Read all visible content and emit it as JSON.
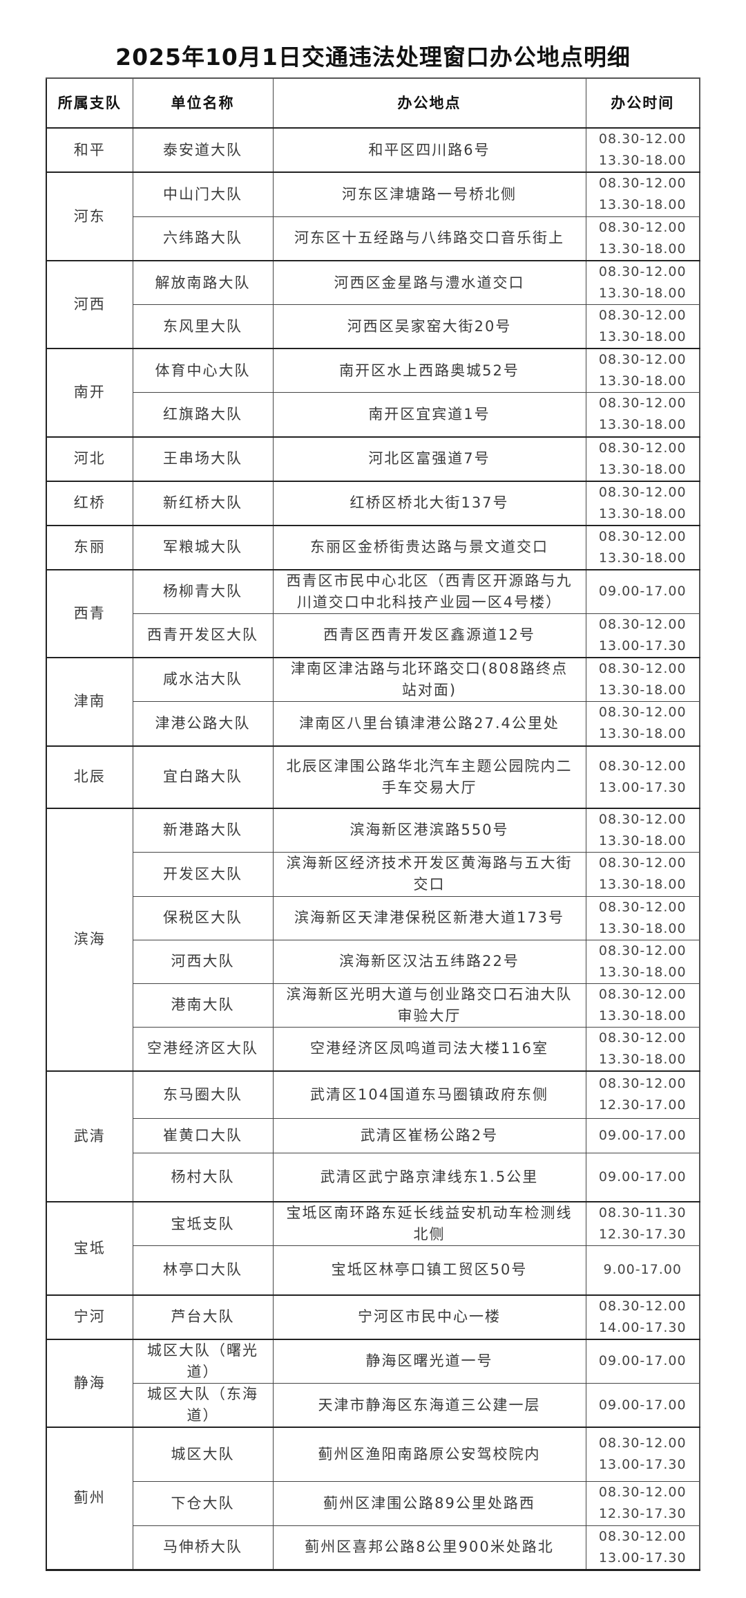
{
  "title": "2025年10月1日交通违法处理窗口办公地点明细",
  "headers": [
    "所属支队",
    "单位名称",
    "办公地点",
    "办公时间"
  ],
  "branches": [
    {
      "name": "和平",
      "units": [
        {
          "unit": "泰安道大队",
          "address": "和平区四川路6号",
          "hours": [
            "08.30-12.00",
            "13.30-18.00"
          ]
        }
      ]
    },
    {
      "name": "河东",
      "units": [
        {
          "unit": "中山门大队",
          "address": "河东区津塘路一号桥北侧",
          "hours": [
            "08.30-12.00",
            "13.30-18.00"
          ]
        },
        {
          "unit": "六纬路大队",
          "address": "河东区十五经路与八纬路交口音乐街上",
          "hours": [
            "08.30-12.00",
            "13.30-18.00"
          ]
        }
      ]
    },
    {
      "name": "河西",
      "units": [
        {
          "unit": "解放南路大队",
          "address": "河西区金星路与澧水道交口",
          "hours": [
            "08.30-12.00",
            "13.30-18.00"
          ]
        },
        {
          "unit": "东风里大队",
          "address": "河西区吴家窑大街20号",
          "hours": [
            "08.30-12.00",
            "13.30-18.00"
          ]
        }
      ]
    },
    {
      "name": "南开",
      "units": [
        {
          "unit": "体育中心大队",
          "address": "南开区水上西路奥城52号",
          "hours": [
            "08.30-12.00",
            "13.30-18.00"
          ]
        },
        {
          "unit": "红旗路大队",
          "address": "南开区宜宾道1号",
          "hours": [
            "08.30-12.00",
            "13.30-18.00"
          ]
        }
      ]
    },
    {
      "name": "河北",
      "units": [
        {
          "unit": "王串场大队",
          "address": "河北区富强道7号",
          "hours": [
            "08.30-12.00",
            "13.30-18.00"
          ]
        }
      ]
    },
    {
      "name": "红桥",
      "units": [
        {
          "unit": "新红桥大队",
          "address": "红桥区桥北大街137号",
          "hours": [
            "08.30-12.00",
            "13.30-18.00"
          ]
        }
      ]
    },
    {
      "name": "东丽",
      "units": [
        {
          "unit": "军粮城大队",
          "address": "东丽区金桥街贵达路与景文道交口",
          "hours": [
            "08.30-12.00",
            "13.30-18.00"
          ]
        }
      ]
    },
    {
      "name": "西青",
      "units": [
        {
          "unit": "杨柳青大队",
          "address": "西青区市民中心北区（西青区开源路与九川道交口中北科技产业园一区4号楼）",
          "hours": [
            "09.00-17.00"
          ]
        },
        {
          "unit": "西青开发区大队",
          "address": "西青区西青开发区鑫源道12号",
          "hours": [
            "08.30-12.00",
            "13.00-17.30"
          ]
        }
      ]
    },
    {
      "name": "津南",
      "units": [
        {
          "unit": "咸水沽大队",
          "address": "津南区津沽路与北环路交口(808路终点站对面)",
          "hours": [
            "08.30-12.00",
            "13.30-18.00"
          ]
        },
        {
          "unit": "津港公路大队",
          "address": "津南区八里台镇津港公路27.4公里处",
          "hours": [
            "08.30-12.00",
            "13.30-18.00"
          ]
        }
      ]
    },
    {
      "name": "北辰",
      "units": [
        {
          "unit": "宜白路大队",
          "address": "北辰区津围公路华北汽车主题公园院内二手车交易大厅",
          "hours": [
            "08.30-12.00",
            "13.00-17.30"
          ]
        }
      ]
    },
    {
      "name": "滨海",
      "units": [
        {
          "unit": "新港路大队",
          "address": "滨海新区港滨路550号",
          "hours": [
            "08.30-12.00",
            "13.30-18.00"
          ]
        },
        {
          "unit": "开发区大队",
          "address": "滨海新区经济技术开发区黄海路与五大街交口",
          "hours": [
            "08.30-12.00",
            "13.30-18.00"
          ]
        },
        {
          "unit": "保税区大队",
          "address": "滨海新区天津港保税区新港大道173号",
          "hours": [
            "08.30-12.00",
            "13.30-18.00"
          ]
        },
        {
          "unit": "河西大队",
          "address": "滨海新区汉沽五纬路22号",
          "hours": [
            "08.30-12.00",
            "13.30-18.00"
          ]
        },
        {
          "unit": "港南大队",
          "address": "滨海新区光明大道与创业路交口石油大队审验大厅",
          "hours": [
            "08.30-12.00",
            "13.30-18.00"
          ]
        },
        {
          "unit": "空港经济区大队",
          "address": "空港经济区凤鸣道司法大楼116室",
          "hours": [
            "08.30-12.00",
            "13.30-18.00"
          ]
        }
      ]
    },
    {
      "name": "武清",
      "units": [
        {
          "unit": "东马圈大队",
          "address": "武清区104国道东马圈镇政府东侧",
          "hours": [
            "08.30-12.00",
            "12.30-17.00"
          ]
        },
        {
          "unit": "崔黄口大队",
          "address": "武清区崔杨公路2号",
          "hours": [
            "09.00-17.00"
          ]
        },
        {
          "unit": "杨村大队",
          "address": "武清区武宁路京津线东1.5公里",
          "hours": [
            "09.00-17.00"
          ]
        }
      ]
    },
    {
      "name": "宝坻",
      "units": [
        {
          "unit": "宝坻支队",
          "address": "宝坻区南环路东延长线益安机动车检测线北侧",
          "hours": [
            "08.30-11.30",
            "12.30-17.30"
          ]
        },
        {
          "unit": "林亭口大队",
          "address": "宝坻区林亭口镇工贸区50号",
          "hours": [
            "9.00-17.00"
          ]
        }
      ]
    },
    {
      "name": "宁河",
      "units": [
        {
          "unit": "芦台大队",
          "address": "宁河区市民中心一楼",
          "hours": [
            "08.30-12.00",
            "14.00-17.30"
          ]
        }
      ]
    },
    {
      "name": "静海",
      "units": [
        {
          "unit": "城区大队（曙光道）",
          "address": "静海区曙光道一号",
          "hours": [
            "09.00-17.00"
          ]
        },
        {
          "unit": "城区大队（东海道）",
          "address": "天津市静海区东海道三公建一层",
          "hours": [
            "09.00-17.00"
          ]
        }
      ]
    },
    {
      "name": "蓟州",
      "units": [
        {
          "unit": "城区大队",
          "address": "蓟州区渔阳南路原公安驾校院内",
          "hours": [
            "08.30-12.00",
            "13.00-17.30"
          ]
        },
        {
          "unit": "下仓大队",
          "address": "蓟州区津围公路89公里处路西",
          "hours": [
            "08.30-12.00",
            "12.30-17.30"
          ]
        },
        {
          "unit": "马伸桥大队",
          "address": "蓟州区喜邦公路8公里900米处路北",
          "hours": [
            "08.30-12.00",
            "13.00-17.30"
          ]
        }
      ]
    }
  ]
}
